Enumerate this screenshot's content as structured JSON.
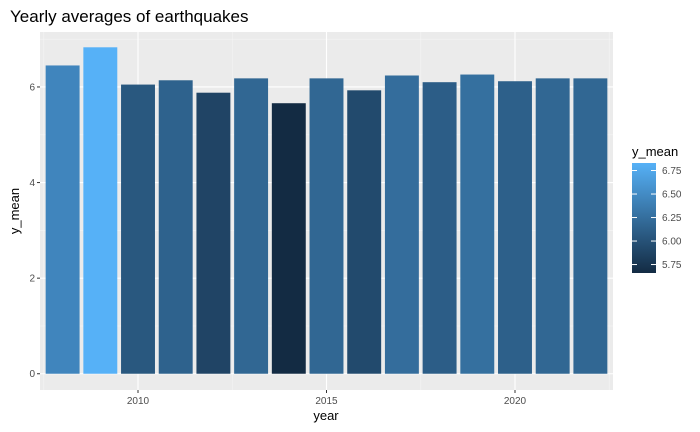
{
  "chart_data": {
    "type": "bar",
    "title": "Yearly averages of earthquakes",
    "xlabel": "year",
    "ylabel": "y_mean",
    "x": [
      2008,
      2009,
      2010,
      2011,
      2012,
      2013,
      2014,
      2015,
      2016,
      2017,
      2018,
      2019,
      2020,
      2021,
      2022
    ],
    "values": [
      6.45,
      6.83,
      6.05,
      6.14,
      5.88,
      6.18,
      5.66,
      6.18,
      5.93,
      6.24,
      6.1,
      6.26,
      6.12,
      6.18,
      6.18
    ],
    "xlim": [
      2007.4,
      2022.6
    ],
    "ylim": [
      -0.34,
      7.15
    ],
    "x_ticks": [
      2010,
      2015,
      2020
    ],
    "y_ticks": [
      0,
      2,
      4,
      6
    ],
    "grid": true,
    "legend": {
      "title": "y_mean",
      "position": "right",
      "breaks": [
        6.75,
        6.5,
        6.25,
        6.0,
        5.75
      ],
      "limits": [
        5.66,
        6.83
      ],
      "color_low": "#132B43",
      "color_high": "#56B1F7"
    },
    "colors": {
      "panel_bg": "#EBEBEB",
      "grid_major": "#FFFFFF",
      "grid_minor": "#F5F5F5"
    }
  }
}
